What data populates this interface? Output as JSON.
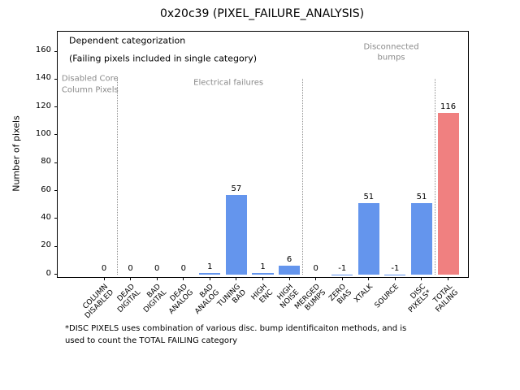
{
  "chart_data": {
    "type": "bar",
    "title": "0x20c39 (PIXEL_FAILURE_ANALYSIS)",
    "xlabel": "",
    "ylabel": "Number of pixels",
    "categories": [
      "COLUMN\nDISABLED",
      "DEAD\nDIGITAL",
      "BAD\nDIGITAL",
      "DEAD\nANALOG",
      "BAD\nANALOG",
      "TUNING\nBAD",
      "HIGH\nENC",
      "HIGH\nNOISE",
      "MERGED\nBUMPS",
      "ZERO\nBIAS",
      "XTALK",
      "SOURCE",
      "DISC\nPIXELS*",
      "TOTAL\nFAILING"
    ],
    "values": [
      0,
      0,
      0,
      0,
      1,
      57,
      1,
      6,
      0,
      -1,
      51,
      -1,
      51,
      116
    ],
    "bar_labels": [
      "0",
      "0",
      "0",
      "0",
      "1",
      "57",
      "1",
      "6",
      "0",
      "-1",
      "51",
      "-1",
      "51",
      "116"
    ],
    "bar_colors": [
      "#6495ED",
      "#6495ED",
      "#6495ED",
      "#6495ED",
      "#6495ED",
      "#6495ED",
      "#6495ED",
      "#6495ED",
      "#6495ED",
      "#6495ED",
      "#6495ED",
      "#6495ED",
      "#6495ED",
      "#F08080"
    ],
    "bar_width": 0.8,
    "yticks": [
      0,
      20,
      40,
      60,
      80,
      100,
      120,
      140,
      160
    ],
    "ylim": [
      -2,
      174
    ],
    "xlim": [
      -1.75,
      13.75
    ],
    "grid": false,
    "legend": null,
    "separators": [
      {
        "x": 0.5,
        "y_top": 140
      },
      {
        "x": 7.5,
        "y_top": 140
      },
      {
        "x": 12.5,
        "y_top": 140
      }
    ],
    "annotations": [
      {
        "text": "Dependent categorization",
        "x": -1.32,
        "y": 167,
        "ha": "left",
        "color": "#000000",
        "size": 11
      },
      {
        "text": "(Failing pixels included in single category)",
        "x": -1.32,
        "y": 154,
        "ha": "left",
        "color": "#000000",
        "size": 11
      },
      {
        "text": "Disabled Core\nColumn Pixels",
        "x": -1.6,
        "y": 136,
        "ha": "left",
        "color": "#8a8a8a",
        "size": 10
      },
      {
        "text": "Electrical failures",
        "x": 4.7,
        "y": 137,
        "ha": "center",
        "color": "#8a8a8a",
        "size": 10
      },
      {
        "text": "Disconnected\nbumps",
        "x": 10.85,
        "y": 159,
        "ha": "center",
        "color": "#8a8a8a",
        "size": 10
      }
    ],
    "footnote": "*DISC PIXELS uses combination of various disc. bump identificaiton methods, and is\nused to count the TOTAL FAILING category",
    "colors": {
      "bar_default": "#6495ED",
      "bar_total_failing": "#F08080",
      "separator": "#909090",
      "section_label_gray": "#8a8a8a",
      "axis": "#000000",
      "background": "#ffffff"
    }
  }
}
